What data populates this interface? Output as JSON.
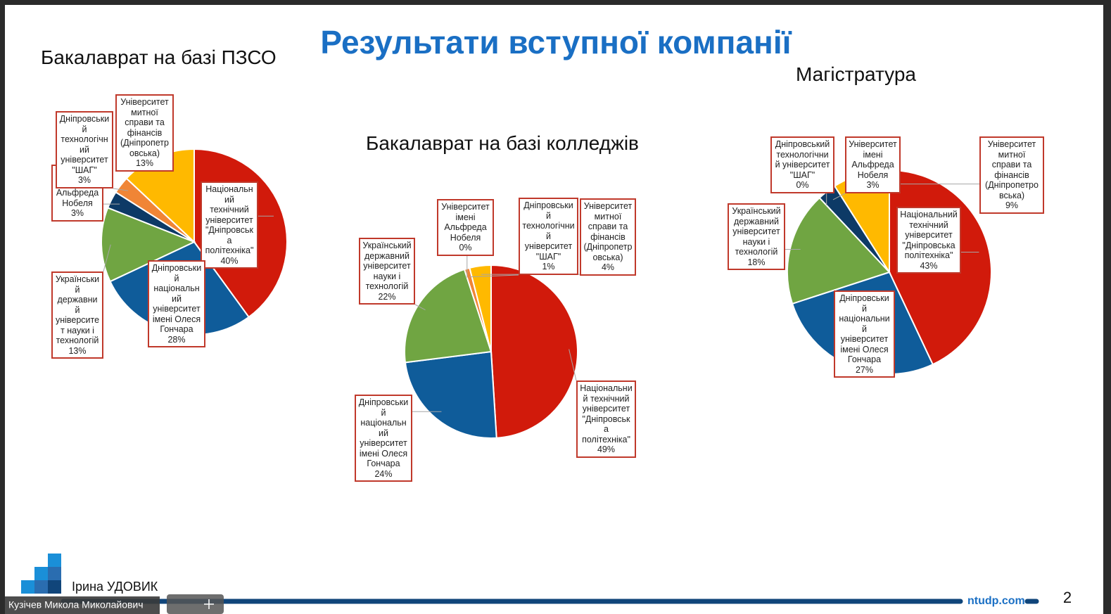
{
  "header": {
    "title": "Результати вступної компанії"
  },
  "footer": {
    "author": "Ірина УДОВИК",
    "site": "ntudp.com",
    "page": "2",
    "participant": "Кузічев Микола Миколайович"
  },
  "chart_data": [
    {
      "type": "pie",
      "title": "Бакалаврат на базі ПЗСО",
      "categories": [
        "Національний технічний університет \"Дніпровська політехніка\"",
        "Дніпровський національний університет імені Олеся Гончара",
        "Український державний університет науки і технологій",
        "Університет імені Альфреда Нобеля",
        "Дніпровський технологічний університет \"ШАГ\"",
        "Університет митної справи та фінансів (Дніпропетровська)"
      ],
      "values": [
        40,
        28,
        13,
        3,
        3,
        13
      ],
      "value_labels": [
        "40%",
        "28%",
        "13%",
        "3%",
        "3%",
        "13%"
      ],
      "colors": [
        "#d11a0b",
        "#0f5c9a",
        "#70a542",
        "#0d3a66",
        "#f08536",
        "#ffb900"
      ]
    },
    {
      "type": "pie",
      "title": "Бакалаврат на базі колледжів",
      "categories": [
        "Національний технічний університет \"Дніпровська політехніка\"",
        "Дніпровський національний університет імені Олеся Гончара",
        "Український державний університет науки і технологій",
        "Університет імені Альфреда Нобеля",
        "Дніпровський технологічний університет \"ШАГ\"",
        "Університет митної справи та фінансів (Дніпропетровська)"
      ],
      "values": [
        49,
        24,
        22,
        0,
        1,
        4
      ],
      "value_labels": [
        "49%",
        "24%",
        "22%",
        "0%",
        "1%",
        "4%"
      ],
      "colors": [
        "#d11a0b",
        "#0f5c9a",
        "#70a542",
        "#0d3a66",
        "#f08536",
        "#ffb900"
      ]
    },
    {
      "type": "pie",
      "title": "Магістратура",
      "categories": [
        "Національний технічний університет \"Дніпровська політехніка\"",
        "Дніпровський національний університет імені Олеся Гончара",
        "Український державний університет науки і технологій",
        "Дніпровський технологічний університет \"ШАГ\"",
        "Університет імені Альфреда Нобеля",
        "Університет митної справи та фінансів (Дніпропетровська)"
      ],
      "values": [
        43,
        27,
        18,
        0,
        3,
        9
      ],
      "value_labels": [
        "43%",
        "27%",
        "18%",
        "0%",
        "3%",
        "9%"
      ],
      "colors": [
        "#d11a0b",
        "#0f5c9a",
        "#70a542",
        "#f08536",
        "#0d3a66",
        "#ffb900"
      ]
    }
  ]
}
